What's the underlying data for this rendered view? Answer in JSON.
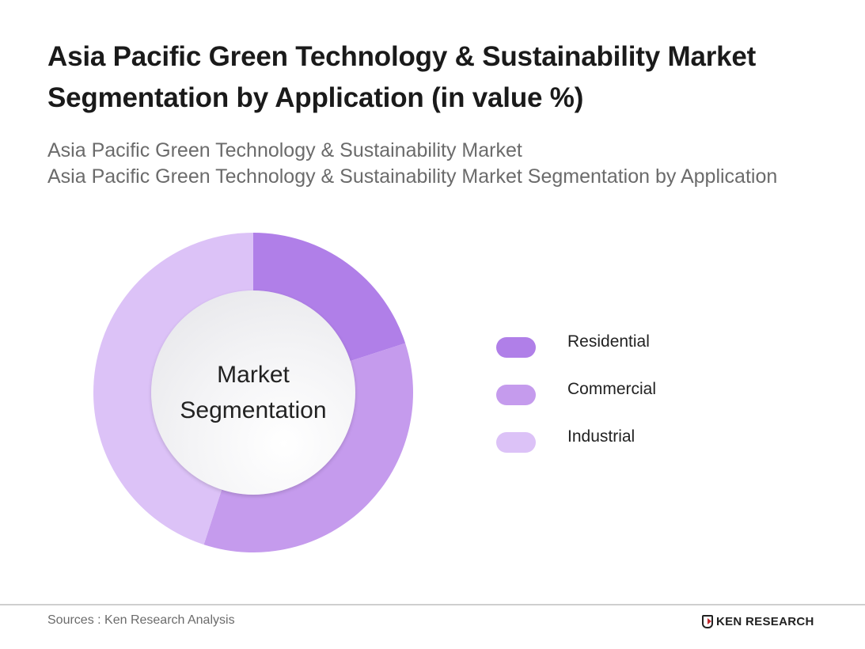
{
  "header": {
    "title": "Asia Pacific Green Technology & Sustainability Market Segmentation by Application (in value %)",
    "subtitle_line1": "Asia Pacific Green Technology & Sustainability Market",
    "subtitle_line2": "Asia Pacific Green Technology & Sustainability Market Segmentation by Application"
  },
  "chart": {
    "center_line1": "Market",
    "center_line2": "Segmentation"
  },
  "legend": {
    "items": [
      {
        "label": "Residential",
        "color": "#b07fe8"
      },
      {
        "label": "Commercial",
        "color": "#c59bed"
      },
      {
        "label": "Industrial",
        "color": "#dcc2f7"
      }
    ]
  },
  "footer": {
    "source": "Sources : Ken Research Analysis",
    "brand": "KEN RESEARCH"
  },
  "chart_data": {
    "type": "pie",
    "subtype": "donut",
    "title": "Asia Pacific Green Technology & Sustainability Market Segmentation by Application (in value %)",
    "center_text": "Market Segmentation",
    "categories": [
      "Residential",
      "Commercial",
      "Industrial"
    ],
    "values": [
      20,
      35,
      45
    ],
    "colors": [
      "#b07fe8",
      "#c59bed",
      "#dcc2f7"
    ],
    "unit": "%",
    "start_angle_deg": 0,
    "direction": "clockwise",
    "legend_position": "right"
  }
}
